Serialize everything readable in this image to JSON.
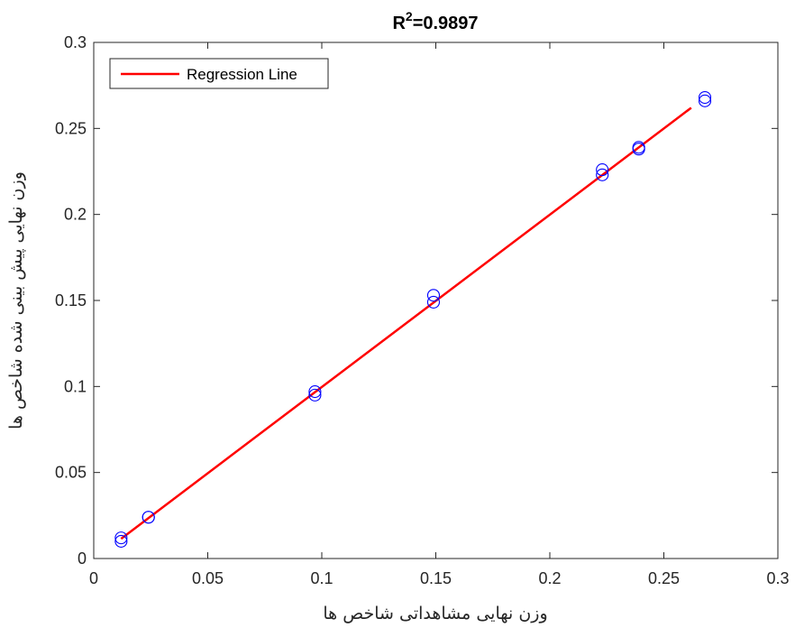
{
  "chart_data": {
    "type": "scatter",
    "title": {
      "base": "R",
      "sup": "2",
      "rest": "=0.9897"
    },
    "xlabel": "وزن نهایی مشاهداتی شاخص ها",
    "ylabel": "وزن نهایی پیش بینی شده شاخص ها",
    "xlim": [
      0,
      0.3
    ],
    "ylim": [
      0,
      0.3
    ],
    "xticks": [
      0,
      0.05,
      0.1,
      0.15,
      0.2,
      0.25,
      0.3
    ],
    "yticks": [
      0,
      0.05,
      0.1,
      0.15,
      0.2,
      0.25,
      0.3
    ],
    "xtick_labels": [
      "0",
      "0.05",
      "0.1",
      "0.15",
      "0.2",
      "0.25",
      "0.3"
    ],
    "ytick_labels": [
      "0",
      "0.05",
      "0.1",
      "0.15",
      "0.2",
      "0.25",
      "0.3"
    ],
    "grid": false,
    "legend": {
      "entries": [
        "Regression Line"
      ],
      "placement": "top-left"
    },
    "series": [
      {
        "marker": "circle",
        "color": "#0000ff",
        "points": [
          [
            0.012,
            0.01
          ],
          [
            0.012,
            0.012
          ],
          [
            0.024,
            0.024
          ],
          [
            0.024,
            0.024
          ],
          [
            0.097,
            0.095
          ],
          [
            0.097,
            0.097
          ],
          [
            0.149,
            0.149
          ],
          [
            0.149,
            0.153
          ],
          [
            0.223,
            0.223
          ],
          [
            0.223,
            0.226
          ],
          [
            0.239,
            0.238
          ],
          [
            0.239,
            0.239
          ],
          [
            0.268,
            0.266
          ],
          [
            0.268,
            0.268
          ]
        ]
      },
      {
        "name": "Regression Line",
        "type": "line",
        "color": "#ff0000",
        "points": [
          [
            0.012,
            0.0115
          ],
          [
            0.262,
            0.262
          ]
        ]
      }
    ]
  }
}
